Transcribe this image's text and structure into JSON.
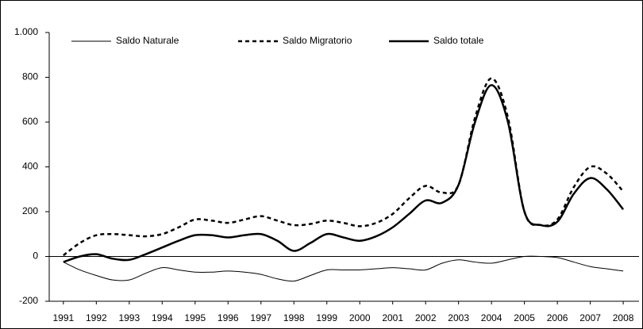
{
  "chart_data": {
    "type": "line",
    "x": [
      1991,
      1991.5,
      1992,
      1992.5,
      1993,
      1993.5,
      1994,
      1994.5,
      1995,
      1995.5,
      1996,
      1996.5,
      1997,
      1997.5,
      1998,
      1998.5,
      1999,
      1999.5,
      2000,
      2000.5,
      2001,
      2001.5,
      2002,
      2002.5,
      2003,
      2003.5,
      2004,
      2004.5,
      2005,
      2005.5,
      2006,
      2006.5,
      2007,
      2007.5,
      2008
    ],
    "series": [
      {
        "name": "Saldo Naturale",
        "color": "#000000",
        "line_style": "thin",
        "values": [
          -25,
          -60,
          -85,
          -105,
          -105,
          -75,
          -50,
          -60,
          -70,
          -70,
          -65,
          -70,
          -80,
          -100,
          -110,
          -85,
          -60,
          -60,
          -60,
          -55,
          -50,
          -55,
          -60,
          -30,
          -15,
          -25,
          -30,
          -15,
          0,
          0,
          -5,
          -25,
          -45,
          -55,
          -65
        ]
      },
      {
        "name": "Saldo Migratorio",
        "color": "#000000",
        "line_style": "dashed",
        "values": [
          5,
          60,
          95,
          100,
          95,
          90,
          100,
          130,
          165,
          160,
          150,
          165,
          180,
          160,
          140,
          145,
          160,
          150,
          135,
          150,
          190,
          260,
          315,
          285,
          320,
          620,
          795,
          620,
          200,
          140,
          165,
          310,
          400,
          370,
          290
        ]
      },
      {
        "name": "Saldo totale",
        "color": "#000000",
        "line_style": "thick",
        "values": [
          -25,
          0,
          10,
          -10,
          -15,
          10,
          40,
          70,
          95,
          95,
          85,
          95,
          100,
          70,
          25,
          60,
          100,
          85,
          70,
          90,
          130,
          190,
          250,
          240,
          320,
          600,
          765,
          600,
          200,
          140,
          155,
          280,
          350,
          300,
          210
        ]
      }
    ],
    "xlim": [
      1990.57,
      2008.48
    ],
    "xticks": [
      1991,
      1992,
      1993,
      1994,
      1995,
      1996,
      1997,
      1998,
      1999,
      2000,
      2001,
      2002,
      2003,
      2004,
      2005,
      2006,
      2007,
      2008
    ],
    "ylim": [
      -200,
      1000
    ],
    "yticks": [
      -200,
      0,
      200,
      400,
      600,
      800,
      {
        "value": 1000,
        "label": "1.000"
      }
    ],
    "grid": false
  }
}
